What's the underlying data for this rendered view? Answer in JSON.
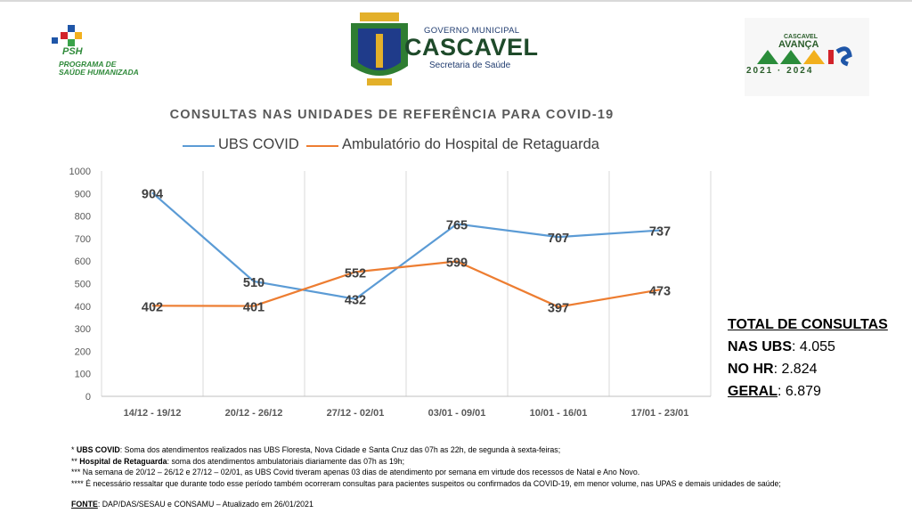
{
  "header": {
    "psh_logo": {
      "abbr": "PSH",
      "subtitle": "PROGRAMA DE\nSAÚDE HUMANIZADA"
    },
    "center_logo": {
      "line1": "GOVERNO MUNICIPAL",
      "line2": "CASCAVEL",
      "line3": "Secretaria de Saúde"
    },
    "right_logo": {
      "line1": "CASCAVEL",
      "line2": "AVANÇA",
      "word": "MAIS",
      "years": "2021 · 2024"
    }
  },
  "chart_data": {
    "type": "line",
    "title": "CONSULTAS NAS UNIDADES DE REFERÊNCIA PARA COVID-19",
    "categories": [
      "14/12 - 19/12",
      "20/12 - 26/12",
      "27/12 - 02/01",
      "03/01 - 09/01",
      "10/01 - 16/01",
      "17/01 - 23/01"
    ],
    "series": [
      {
        "name": "UBS COVID",
        "color": "#5b9bd5",
        "values": [
          904,
          510,
          432,
          765,
          707,
          737
        ]
      },
      {
        "name": "Ambulatório do Hospital de Retaguarda",
        "color": "#ed7d31",
        "values": [
          402,
          401,
          552,
          599,
          397,
          473
        ]
      }
    ],
    "yticks": [
      "0",
      "100",
      "200",
      "300",
      "400",
      "500",
      "600",
      "700",
      "800",
      "900",
      "1000"
    ],
    "ylim": [
      0,
      1000
    ],
    "grid": "vertical",
    "legend": "top"
  },
  "totals": {
    "header": "TOTAL DE CONSULTAS",
    "rows": [
      {
        "label": "NAS UBS",
        "value": ": 4.055"
      },
      {
        "label": "NO HR",
        "value": ": 2.824"
      },
      {
        "label": "GERAL",
        "value": ": 6.879"
      }
    ]
  },
  "notes": [
    {
      "prefix": "* ",
      "bold": "UBS COVID",
      "text": ": Soma dos atendimentos realizados nas UBS Floresta, Nova Cidade e Santa Cruz das 07h as 22h, de segunda à sexta-feiras;"
    },
    {
      "prefix": "** ",
      "bold": "Hospital de Retaguarda",
      "text": ": soma dos atendimentos ambulatoriais diariamente das 07h as 19h;"
    },
    {
      "prefix": "*** ",
      "bold": "",
      "text": "Na semana de 20/12 – 26/12 e 27/12 – 02/01, as UBS Covid tiveram apenas 03 dias de atendimento por semana em virtude dos recessos de Natal e Ano Novo."
    },
    {
      "prefix": "**** ",
      "bold": "",
      "text": "É necessário ressaltar que durante todo esse período também ocorreram consultas para pacientes suspeitos ou confirmados da COVID-19, em menor volume, nas UPAS e demais unidades de saúde;"
    }
  ],
  "source": {
    "label": "FONTE",
    "text": ": DAP/DAS/SESAU e CONSAMU – Atualizado em 26/01/2021"
  }
}
